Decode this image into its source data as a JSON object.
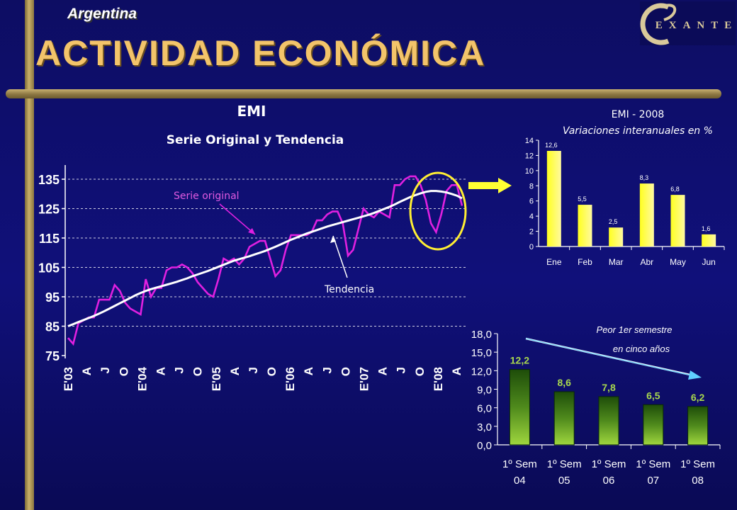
{
  "header": {
    "country": "Argentina",
    "title": "ACTIVIDAD ECONÓMICA",
    "logo_text": "EXANTE"
  },
  "colors": {
    "background": "#10107a",
    "title": "#f3c46a",
    "serie_original": "#e020e0",
    "tendencia": "#ffffff",
    "bars_yellow": "#ffff40",
    "bars_green": "#8cc63f",
    "circle": "#ffee33"
  },
  "chart_data": [
    {
      "id": "emi-line",
      "type": "line",
      "title": "EMI",
      "subtitle": "Serie Original y Tendencia",
      "ylim": [
        75,
        140
      ],
      "yticks": [
        "75",
        "85",
        "95",
        "105",
        "115",
        "125",
        "135"
      ],
      "ytick_values": [
        75,
        85,
        95,
        105,
        115,
        125,
        135
      ],
      "grid": true,
      "x_tick_labels": [
        "E'03",
        "A",
        "J",
        "O",
        "E'04",
        "A",
        "J",
        "O",
        "E'05",
        "A",
        "J",
        "O",
        "E'06",
        "A",
        "J",
        "O",
        "E'07",
        "A",
        "J",
        "O",
        "E'08",
        "A"
      ],
      "annotations": [
        "Serie original",
        "Tendencia"
      ],
      "series": [
        {
          "name": "Serie original",
          "values": [
            81,
            79,
            86,
            87,
            88,
            88,
            94,
            94,
            94,
            99,
            97,
            93,
            91,
            90,
            89,
            101,
            95,
            98,
            98,
            104,
            105,
            105,
            106,
            105,
            103,
            100,
            98,
            96,
            95,
            101,
            108,
            107,
            108,
            106,
            108,
            112,
            113,
            114,
            114,
            108,
            102,
            104,
            111,
            116,
            116,
            116,
            116,
            117,
            121,
            121,
            123,
            124,
            124,
            120,
            109,
            111,
            118,
            125,
            123,
            122,
            124,
            123,
            122,
            133,
            133,
            135,
            136,
            136,
            133,
            128,
            120,
            117,
            123,
            131,
            133,
            133,
            126
          ]
        },
        {
          "name": "Tendencia",
          "values": [
            85,
            85.7,
            86.4,
            87.1,
            87.8,
            88.5,
            89.3,
            90.1,
            91,
            91.9,
            92.8,
            93.7,
            94.6,
            95.5,
            96.3,
            97,
            97.6,
            98.1,
            98.6,
            99.1,
            99.6,
            100.1,
            100.7,
            101.3,
            102,
            102.6,
            103.2,
            103.8,
            104.5,
            105.2,
            105.9,
            106.6,
            107.3,
            107.8,
            108.3,
            108.8,
            109.4,
            110,
            110.6,
            111.3,
            112,
            112.8,
            113.6,
            114.4,
            115.1,
            115.8,
            116.5,
            117.1,
            117.7,
            118.3,
            118.9,
            119.4,
            119.9,
            120.4,
            120.9,
            121.4,
            121.9,
            122.4,
            122.9,
            123.5,
            124.2,
            124.9,
            125.6,
            126.4,
            127.3,
            128.1,
            128.9,
            129.6,
            130.2,
            130.7,
            131,
            131,
            130.8,
            130.5,
            130,
            129.4,
            128.5
          ]
        }
      ]
    },
    {
      "id": "emi-2008-bars",
      "type": "bar",
      "title": "EMI - 2008",
      "subtitle": "Variaciones interanuales en %",
      "categories": [
        "Ene",
        "Feb",
        "Mar",
        "Abr",
        "May",
        "Jun"
      ],
      "values": [
        12.6,
        5.5,
        2.5,
        8.3,
        6.8,
        1.6
      ],
      "value_labels": [
        "12,6",
        "5,5",
        "2,5",
        "8,3",
        "6,8",
        "1,6"
      ],
      "ylim": [
        0,
        14
      ],
      "yticks": [
        "0",
        "2",
        "4",
        "6",
        "8",
        "10",
        "12",
        "14"
      ],
      "ytick_values": [
        0,
        2,
        4,
        6,
        8,
        10,
        12,
        14
      ],
      "grid": false
    },
    {
      "id": "first-semester-bars",
      "type": "bar",
      "annotation": [
        "Peor 1er semestre",
        "en cinco años"
      ],
      "categories": [
        [
          "1º Sem",
          "04"
        ],
        [
          "1º Sem",
          "05"
        ],
        [
          "1º Sem",
          "06"
        ],
        [
          "1º Sem",
          "07"
        ],
        [
          "1º Sem",
          "08"
        ]
      ],
      "values": [
        12.2,
        8.6,
        7.8,
        6.5,
        6.2
      ],
      "value_labels": [
        "12,2",
        "8,6",
        "7,8",
        "6,5",
        "6,2"
      ],
      "ylim": [
        0,
        18
      ],
      "yticks": [
        "0,0",
        "3,0",
        "6,0",
        "9,0",
        "12,0",
        "15,0",
        "18,0"
      ],
      "ytick_values": [
        0,
        3,
        6,
        9,
        12,
        15,
        18
      ],
      "grid": false
    }
  ]
}
